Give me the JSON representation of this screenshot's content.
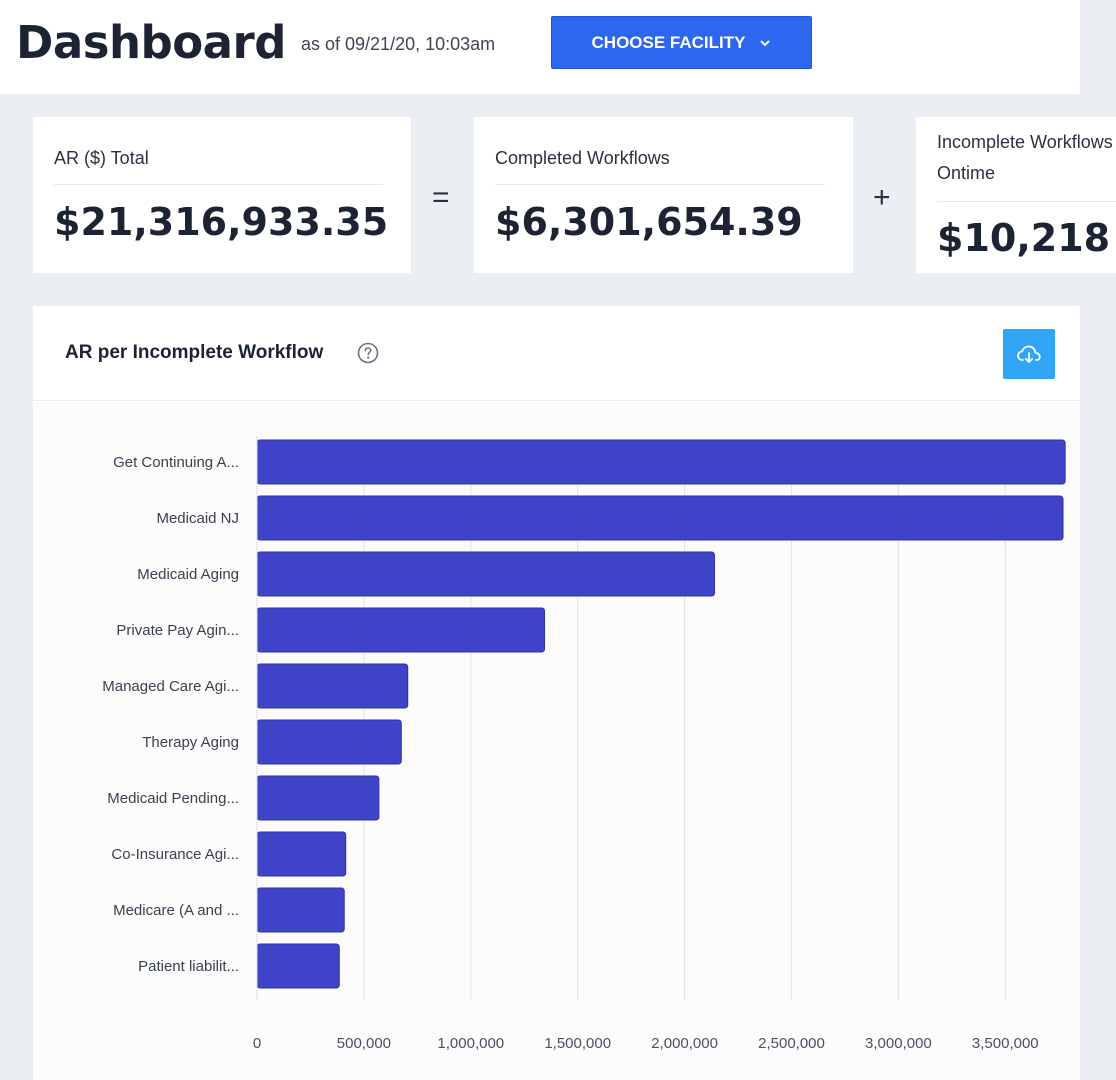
{
  "header": {
    "title": "Dashboard",
    "timestamp": "as of 09/21/20, 10:03am",
    "facility_button": "CHOOSE FACILITY"
  },
  "cards": [
    {
      "label": "AR ($) Total",
      "value": "$21,316,933.35"
    },
    {
      "label": "Completed Workflows",
      "value": "$6,301,654.39"
    },
    {
      "label": "Incomplete Workflows Ontime",
      "label_line1": "Incomplete Workflows",
      "label_line2": "Ontime",
      "value": "$10,218"
    }
  ],
  "operators": {
    "equals": "=",
    "plus": "+"
  },
  "colors": {
    "bar": "#3f43c8",
    "bar_stroke": "#2e32a8",
    "button": "#2e67ef",
    "download": "#30a4f5"
  },
  "chart_panel": {
    "title": "AR per Incomplete Workflow",
    "help_icon": "question-circle-icon",
    "download_icon": "cloud-download-icon"
  },
  "chart_data": {
    "type": "bar",
    "orientation": "horizontal",
    "title": "AR per Incomplete Workflow",
    "xlabel": "",
    "ylabel": "",
    "xlim": [
      0,
      3800000
    ],
    "xticks": [
      0,
      500000,
      1000000,
      1500000,
      2000000,
      2500000,
      3000000,
      3500000
    ],
    "xtick_labels": [
      "0",
      "500,000",
      "1,000,000",
      "1,500,000",
      "2,000,000",
      "2,500,000",
      "3,000,000",
      "3,500,000"
    ],
    "grid": true,
    "categories": [
      "Get Continuing A...",
      "Medicaid NJ",
      "Medicaid Aging",
      "Private Pay Agin...",
      "Managed Care Agi...",
      "Therapy Aging",
      "Medicaid Pending...",
      "Co-Insurance Agi...",
      "Medicare (A and ...",
      "Patient liabilit..."
    ],
    "values": [
      3780000,
      3770000,
      2140000,
      1345000,
      705000,
      675000,
      570000,
      415000,
      408000,
      385000
    ]
  }
}
